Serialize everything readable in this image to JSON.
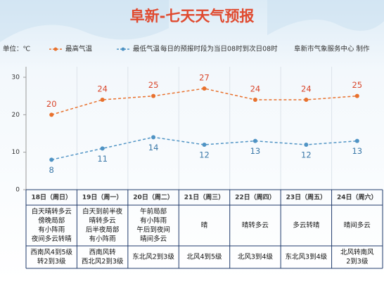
{
  "chart_data": {
    "type": "line",
    "title": "阜新-七天天气预报",
    "unit": "单位：℃",
    "note": "每日的预报时段为当日08时到次日08时",
    "source": "阜新市气象服务中心 制作",
    "categories": [
      "18日（周日）",
      "19日（周一）",
      "20日（周二）",
      "21日（周三）",
      "22日（周四）",
      "23日（周五）",
      "24日（周六）"
    ],
    "series": [
      {
        "name": "最高气温",
        "color": "#e8712d",
        "values": [
          20,
          24,
          25,
          27,
          24,
          24,
          25
        ]
      },
      {
        "name": "最低气温",
        "color": "#4f93c4",
        "values": [
          8,
          11,
          14,
          12,
          13,
          12,
          13
        ]
      }
    ],
    "ylim": [
      0,
      30
    ],
    "yticks": [
      0,
      10,
      20,
      30
    ],
    "weather": [
      [
        "白天晴转多云",
        "傍晚局部",
        "有小阵雨",
        "夜间多云转晴"
      ],
      [
        "白天到前半夜",
        "晴转多云",
        "后半夜局部",
        "有小阵雨"
      ],
      [
        "午前局部",
        "有小阵雨",
        "午后到夜间",
        "晴间多云"
      ],
      [
        "晴"
      ],
      [
        "晴转多云"
      ],
      [
        "多云转晴"
      ],
      [
        "晴间多云"
      ]
    ],
    "wind": [
      [
        "西南风4到5级",
        "转2到3级"
      ],
      [
        "西南风转",
        "西北风2到3级"
      ],
      [
        "东北风2到3级"
      ],
      [
        "北风4到5级"
      ],
      [
        "北风3到4级"
      ],
      [
        "东北风3到4级"
      ],
      [
        "北风转南风",
        "2到3级"
      ]
    ]
  }
}
